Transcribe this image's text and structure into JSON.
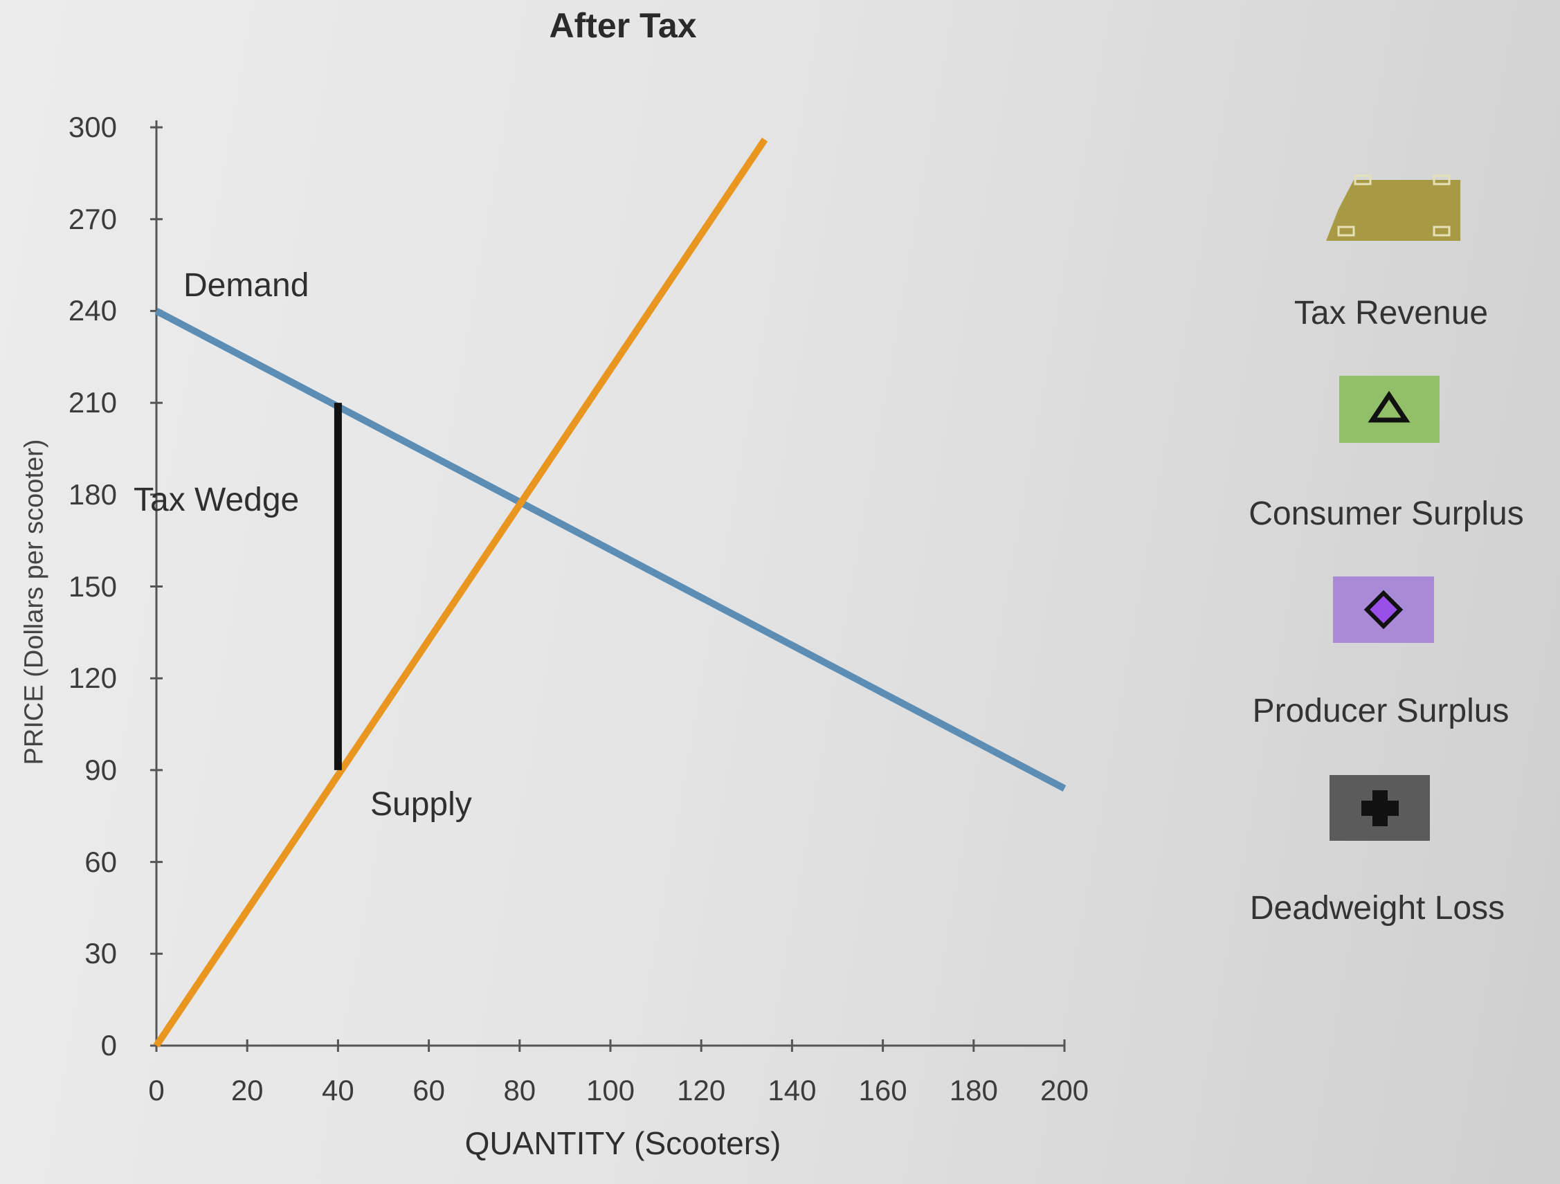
{
  "chart_data": {
    "type": "line",
    "title": "After Tax",
    "xlabel": "QUANTITY (Scooters)",
    "ylabel": "PRICE (Dollars per scooter)",
    "xlim": [
      0,
      200
    ],
    "ylim": [
      0,
      300
    ],
    "x_ticks": [
      "0",
      "20",
      "40",
      "60",
      "80",
      "100",
      "120",
      "140",
      "160",
      "180",
      "200"
    ],
    "y_ticks": [
      "0",
      "30",
      "60",
      "90",
      "120",
      "150",
      "180",
      "210",
      "240",
      "270",
      "300"
    ],
    "grid": false,
    "series": [
      {
        "name": "Demand",
        "color": "#5b8db5",
        "points": [
          [
            0,
            240
          ],
          [
            200,
            84
          ]
        ]
      },
      {
        "name": "Supply",
        "color": "#e8961f",
        "points": [
          [
            0,
            0
          ],
          [
            134,
            296
          ]
        ]
      },
      {
        "name": "Tax Wedge",
        "color": "#111111",
        "points": [
          [
            40,
            210
          ],
          [
            40,
            90
          ]
        ]
      }
    ],
    "annotations": [
      "Demand",
      "Supply",
      "Tax Wedge"
    ]
  },
  "legend": {
    "items": [
      {
        "label": "Tax Revenue",
        "icon": "tax-revenue-icon",
        "color": "#a89a45"
      },
      {
        "label": "Consumer Surplus",
        "icon": "triangle-icon",
        "color": "#92bf6a"
      },
      {
        "label": "Producer Surplus",
        "icon": "diamond-icon",
        "color": "#a98ad6"
      },
      {
        "label": "Deadweight Loss",
        "icon": "plus-icon",
        "color": "#5b5b5b"
      }
    ]
  }
}
